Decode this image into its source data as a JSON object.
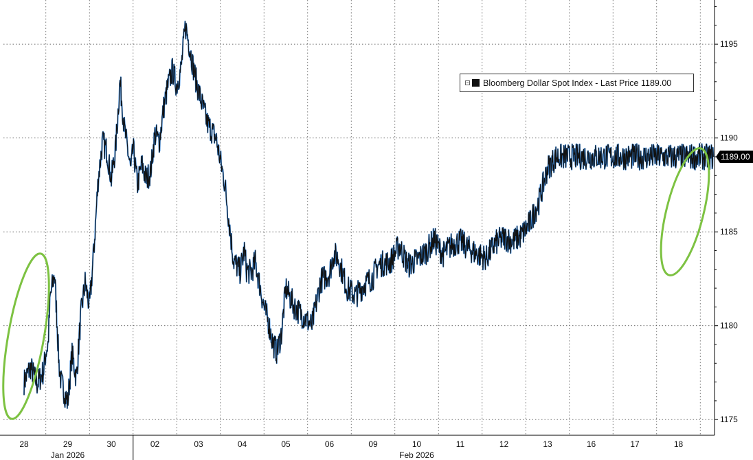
{
  "colors": {
    "series": "#111111",
    "series_highlight": "#2f7fd4",
    "grid": "#555555",
    "annotation": "#7dc242",
    "axis": "#000000",
    "last_price_tag_bg": "#000000",
    "last_price_tag_fg": "#ffffff"
  },
  "chart_data": {
    "type": "line",
    "legend": {
      "label": "Bloomberg Dollar Spot Index - Last Price 1189.00",
      "placement": "top-right"
    },
    "last_price_tag": "1189.00",
    "y_axis": {
      "position": "right",
      "ylim": [
        1174,
        1198
      ],
      "ticks": [
        1175,
        1180,
        1185,
        1190,
        1195
      ],
      "tick_labels": [
        "1175",
        "1180",
        "1185",
        "1190",
        "1195"
      ]
    },
    "x_axis": {
      "ticks": [
        "28",
        "29",
        "30",
        "02",
        "03",
        "04",
        "05",
        "06",
        "09",
        "10",
        "11",
        "12",
        "13",
        "16",
        "17",
        "18"
      ],
      "month_labels": [
        {
          "label": "Jan 2026",
          "at": "29"
        },
        {
          "label": "Feb 2026",
          "at": "10"
        }
      ]
    },
    "grid": true,
    "series": [
      {
        "x": [
          0,
          0.15,
          0.3,
          0.45,
          0.5,
          0.55,
          0.6,
          0.7,
          0.75,
          0.8,
          0.85,
          1.0,
          1.1,
          1.2,
          1.3,
          1.4,
          1.5,
          1.6,
          1.7,
          1.8,
          1.9,
          2.0,
          2.1,
          2.2,
          2.3,
          2.4,
          2.45,
          2.5,
          2.6,
          2.7,
          2.8,
          2.9,
          3.0,
          3.1,
          3.2,
          3.3,
          3.4,
          3.5,
          3.6,
          3.7,
          3.8,
          3.9,
          4.0,
          4.2,
          4.4,
          4.6,
          4.8,
          4.95,
          5.05,
          5.1,
          5.2,
          5.3,
          5.4,
          5.5,
          5.6,
          5.7,
          5.8,
          5.9,
          6.0,
          6.2,
          6.4,
          6.6,
          6.8,
          6.9,
          7.0,
          7.1,
          7.2,
          7.4,
          7.6,
          7.8,
          8.0,
          8.1,
          8.2,
          8.4,
          8.6,
          8.8,
          9.0,
          9.2,
          9.4,
          9.6,
          9.8,
          10.0,
          10.2,
          10.4,
          10.6,
          10.8,
          11.0,
          11.2,
          11.4,
          11.6,
          11.8,
          12.0,
          12.2,
          12.4,
          12.6,
          12.8,
          13.0,
          13.2,
          13.4,
          13.6,
          13.8,
          14.0,
          14.3,
          14.6,
          14.75,
          14.85,
          15.0,
          15.1,
          15.2,
          15.3,
          15.4,
          15.5,
          15.6,
          15.7,
          15.8
        ],
        "values": [
          1177.0,
          1177.8,
          1176.9,
          1177.6,
          1178.6,
          1179.0,
          1181.5,
          1182.8,
          1180.5,
          1178.0,
          1177.0,
          1175.9,
          1178.5,
          1177.2,
          1180.5,
          1182.3,
          1181.0,
          1184.0,
          1187.8,
          1189.8,
          1189.3,
          1187.8,
          1189.5,
          1193.0,
          1190.5,
          1189.0,
          1188.2,
          1189.5,
          1187.5,
          1188.6,
          1187.8,
          1188.2,
          1190.2,
          1189.8,
          1191.6,
          1192.8,
          1193.6,
          1192.8,
          1193.7,
          1196.0,
          1194.8,
          1193.5,
          1192.5,
          1190.8,
          1190.0,
          1187.6,
          1183.5,
          1182.9,
          1184.0,
          1183.0,
          1182.8,
          1183.4,
          1182.2,
          1181.0,
          1180.2,
          1179.1,
          1178.6,
          1179.6,
          1182.0,
          1181.0,
          1180.5,
          1180.0,
          1182.4,
          1182.6,
          1182.8,
          1183.8,
          1183.6,
          1182.0,
          1181.6,
          1182.2,
          1182.6,
          1183.2,
          1183.3,
          1183.4,
          1184.3,
          1183.2,
          1183.5,
          1183.9,
          1184.6,
          1183.8,
          1184.3,
          1184.5,
          1184.1,
          1183.8,
          1183.6,
          1184.4,
          1184.7,
          1184.5,
          1184.8,
          1185.5,
          1186.6,
          1188.4,
          1189.0,
          1189.0,
          1189.0,
          1189.0,
          1189.0,
          1189.0,
          1189.0,
          1189.0,
          1189.0,
          1189.0,
          1189.0,
          1189.0,
          1189.0,
          1189.0,
          1189.0,
          1189.0,
          1189.0,
          1189.0,
          1189.0,
          1189.0,
          1189.0,
          1189.0,
          1189.0
        ]
      }
    ]
  }
}
